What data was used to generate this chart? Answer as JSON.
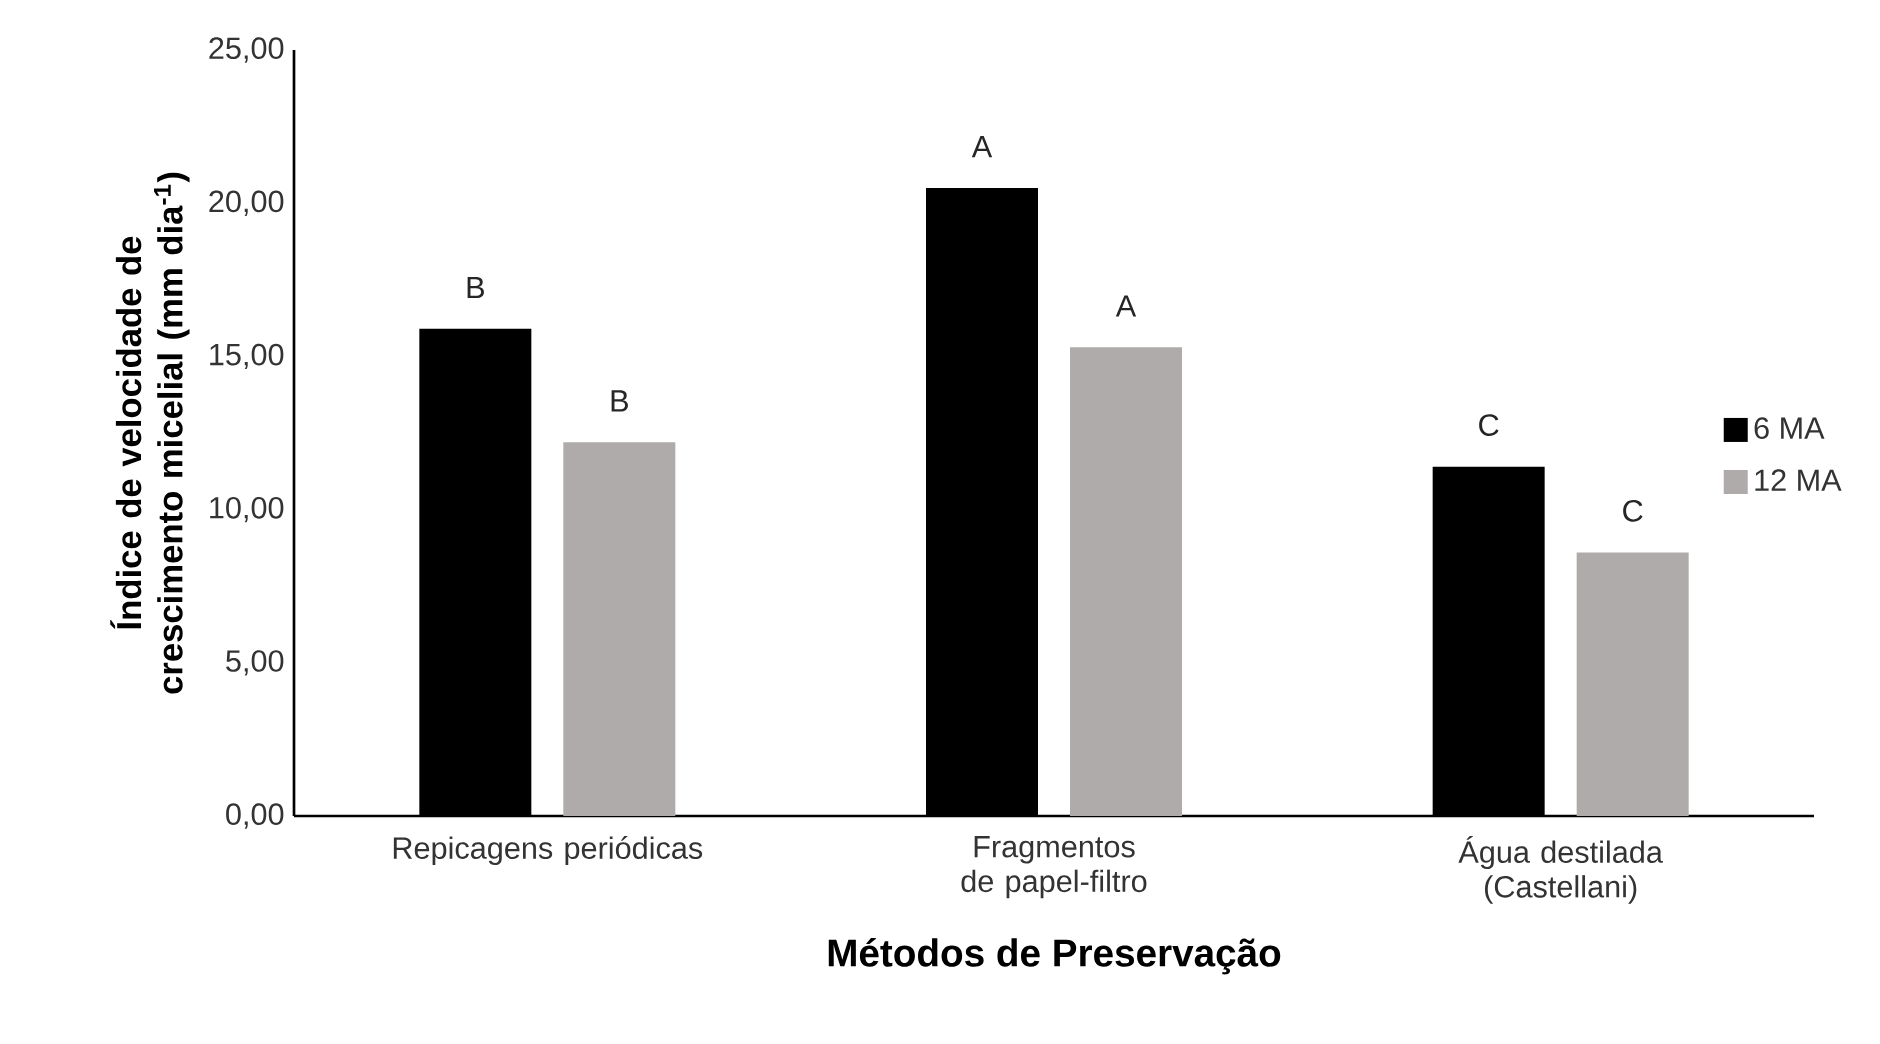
{
  "chart_data": {
    "type": "bar",
    "xlabel": "Métodos de Preservação",
    "ylabel": "Índice de velocidade de crescimento micelial (mm dia$^{-1}$)",
    "categories": [
      "Repicagens periódicas",
      "Fragmentos de papel-filtro",
      "Água destilada (Castellani)"
    ],
    "series": [
      {
        "name": "6 MA",
        "color": "#000000",
        "values": [
          15.9,
          20.5,
          11.4
        ],
        "value_labels": [
          "B",
          "A",
          "C"
        ]
      },
      {
        "name": "12 MA",
        "color": "#afabab",
        "values": [
          12.2,
          15.3,
          8.6
        ],
        "value_labels": [
          "B",
          "A",
          "C"
        ]
      }
    ],
    "ylim": [
      0,
      25
    ],
    "yticks": [
      {
        "value": 0,
        "label": "0,00"
      },
      {
        "value": 5,
        "label": "5,00"
      },
      {
        "value": 10,
        "label": "10,00"
      },
      {
        "value": 15,
        "label": "15,00"
      },
      {
        "value": 20,
        "label": "20,00"
      },
      {
        "value": 25,
        "label": "25,00"
      }
    ],
    "grid": false,
    "legend": "right"
  }
}
